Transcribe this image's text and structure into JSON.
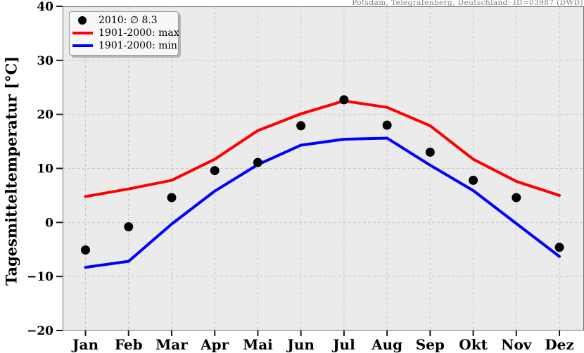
{
  "station_label": "Potsdam, Telegrafenberg, Deutschland: ID=03987 (DWD)",
  "y_axis": {
    "label": "Tagesmitteltemperatur [°C]",
    "tick_values": [
      40,
      30,
      20,
      10,
      0,
      -10,
      -20
    ],
    "tick_labels": [
      "40",
      "30",
      "20",
      "10",
      "0",
      "−10",
      "−20"
    ]
  },
  "legend": {
    "items": [
      {
        "label": "2010: ∅ 8.3",
        "marker": "dot",
        "color": "#000000"
      },
      {
        "label": "1901-2000: max",
        "marker": "line",
        "color": "#ff0000"
      },
      {
        "label": "1901-2000: min",
        "marker": "line",
        "color": "#0000ff"
      }
    ]
  },
  "colors": {
    "plot_bg": "#ebebeb",
    "grid": "#c8c8c8",
    "spine": "#6e6e6e",
    "tick": "#1a1a1a",
    "label": "#000000",
    "station_text": "#808080",
    "dot_series": "#000000",
    "max_line": "#ff0000",
    "min_line": "#0000ff"
  },
  "chart_data": {
    "type": "line",
    "title": "",
    "categories": [
      "Jan",
      "Feb",
      "Mar",
      "Apr",
      "Mai",
      "Jun",
      "Jul",
      "Aug",
      "Sep",
      "Okt",
      "Nov",
      "Dez"
    ],
    "series": [
      {
        "name": "2010: ∅ 8.3",
        "type": "scatter",
        "color": "#000000",
        "values": [
          -5.1,
          -0.8,
          4.6,
          9.6,
          11.1,
          17.9,
          22.7,
          18.0,
          13.0,
          7.8,
          4.6,
          -4.6
        ]
      },
      {
        "name": "1901-2000: max",
        "type": "line",
        "color": "#ff0000",
        "values": [
          4.8,
          6.2,
          7.8,
          11.7,
          17.0,
          20.1,
          22.5,
          21.3,
          17.9,
          11.7,
          7.6,
          5.0
        ]
      },
      {
        "name": "1901-2000: min",
        "type": "line",
        "color": "#0000ff",
        "values": [
          -8.3,
          -7.2,
          -0.3,
          5.8,
          10.7,
          14.3,
          15.4,
          15.6,
          10.6,
          5.9,
          -0.2,
          -6.3
        ]
      }
    ],
    "xlabel": "",
    "ylabel": "Tagesmitteltemperatur [°C]",
    "ylim": [
      -20,
      40
    ],
    "grid": true,
    "legend_position": "top-left",
    "annotation_2010_mean": 8.3
  }
}
